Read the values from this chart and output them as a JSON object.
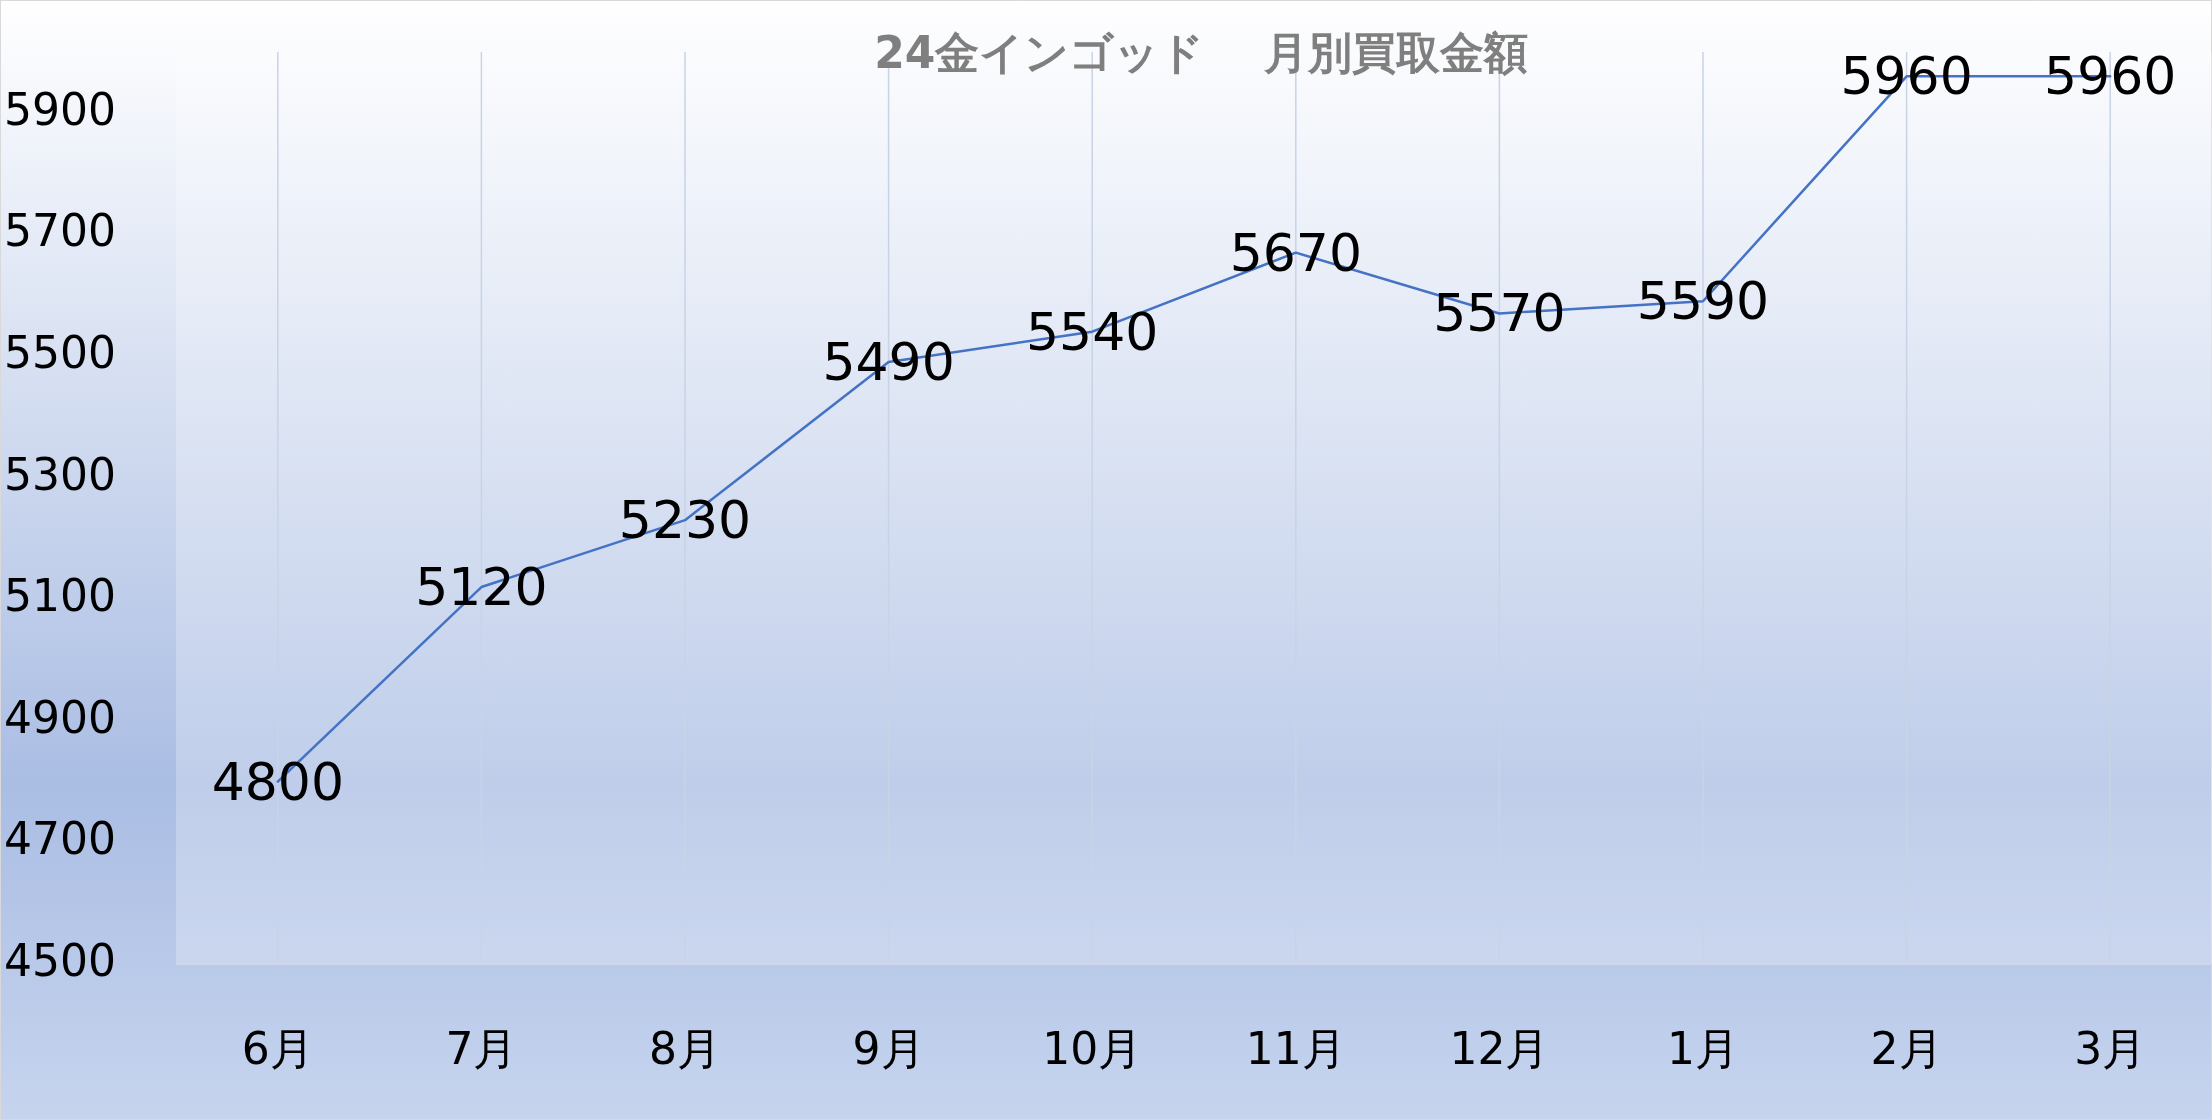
{
  "chart_data": {
    "type": "line",
    "title": "24金インゴッド　 月別買取金額",
    "categories": [
      "6月",
      "7月",
      "8月",
      "9月",
      "10月",
      "11月",
      "12月",
      "1月",
      "2月",
      "3月"
    ],
    "series": [
      {
        "color": "#4472c4",
        "values": [
          4800,
          5120,
          5230,
          5490,
          5540,
          5670,
          5570,
          5590,
          5960,
          5960
        ]
      }
    ],
    "ylim": [
      4500,
      6000
    ],
    "yticks": [
      4500,
      4700,
      4900,
      5100,
      5300,
      5500,
      5700,
      5900
    ],
    "grid": "x",
    "data_labels": true,
    "marker": "none",
    "line_style": "solid"
  }
}
